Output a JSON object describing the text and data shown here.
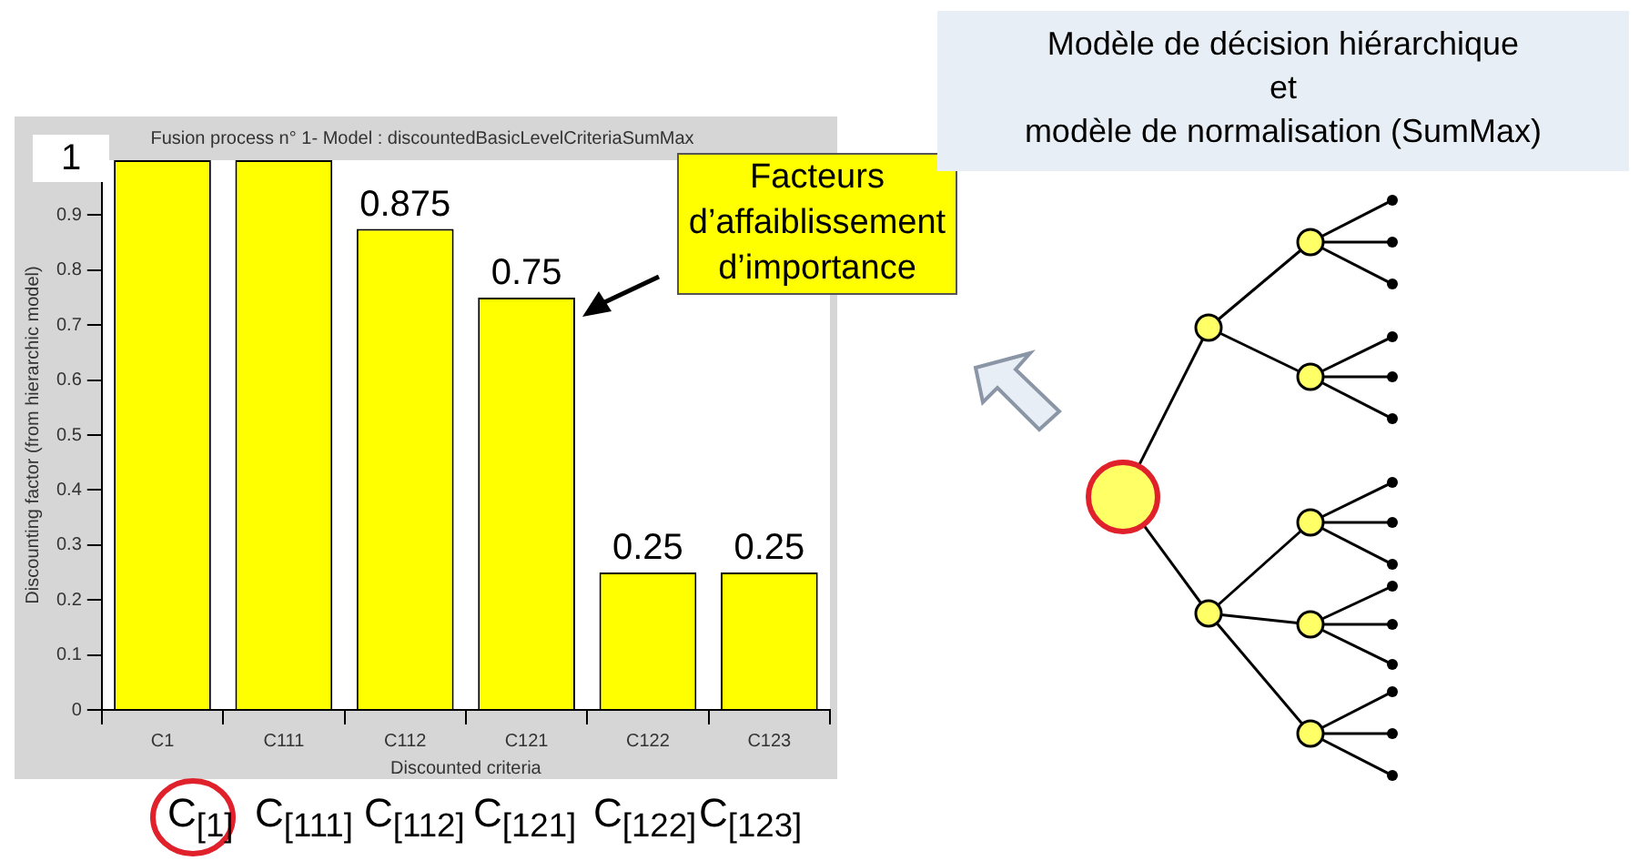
{
  "chart_data": {
    "type": "bar",
    "title": "Fusion process n° 1- Model : discountedBasicLevelCriteriaSumMax",
    "xlabel": "Discounted criteria",
    "ylabel": "Discounting factor (from hierarchic model)",
    "categories": [
      "C1",
      "C111",
      "C112",
      "C121",
      "C122",
      "C123"
    ],
    "values": [
      1,
      1,
      0.875,
      0.75,
      0.25,
      0.25
    ],
    "color": "#ffff00",
    "value_labels": [
      null,
      null,
      "0.875",
      "0.75",
      "0.25",
      "0.25"
    ],
    "ylim": [
      0,
      1
    ],
    "yticks": [
      0,
      0.1,
      0.2,
      0.3,
      0.4,
      0.5,
      0.6,
      0.7,
      0.8,
      0.9
    ],
    "annotations": [
      "1",
      "Facteurs d’affaiblissement d’importance",
      "Modèle de décision hiérarchique\net\nmodèle de normalisation (SumMax)",
      "C$_{[1]}$",
      "C$_{[111]}$",
      "C$_{[112]}$",
      "C$_{[121]}$",
      "C$_{[122]}$",
      "C$_{[123]}$"
    ]
  }
}
